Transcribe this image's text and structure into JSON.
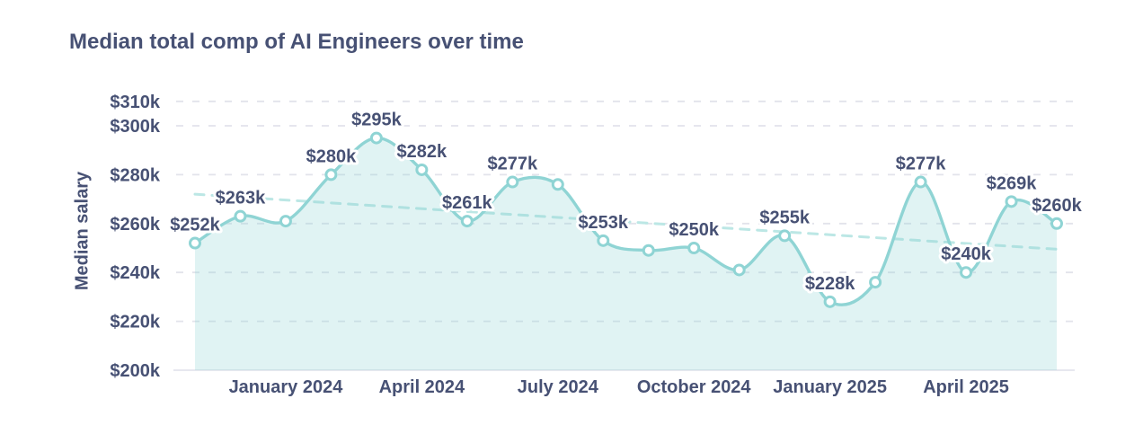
{
  "chart_data": {
    "type": "area",
    "title": "Median total comp of AI Engineers over time",
    "ylabel": "Median salary",
    "xlabel": "",
    "grid": true,
    "legend": false,
    "ylim": [
      200,
      310
    ],
    "y_axis": {
      "baseline_value": 200,
      "ticks": [
        {
          "value": 310,
          "label": "$310k"
        },
        {
          "value": 300,
          "label": "$300k"
        },
        {
          "value": 280,
          "label": "$280k"
        },
        {
          "value": 260,
          "label": "$260k"
        },
        {
          "value": 240,
          "label": "$240k"
        },
        {
          "value": 220,
          "label": "$220k"
        },
        {
          "value": 200,
          "label": "$200k"
        }
      ]
    },
    "x_ticks": [
      {
        "index": 2,
        "label": "January 2024"
      },
      {
        "index": 5,
        "label": "April 2024"
      },
      {
        "index": 8,
        "label": "July 2024"
      },
      {
        "index": 11,
        "label": "October 2024"
      },
      {
        "index": 14,
        "label": "January 2025"
      },
      {
        "index": 17,
        "label": "April 2025"
      }
    ],
    "points": [
      {
        "value": 252,
        "label": "$252k"
      },
      {
        "value": 263,
        "label": "$263k"
      },
      {
        "value": 261,
        "label": null
      },
      {
        "value": 280,
        "label": "$280k"
      },
      {
        "value": 295,
        "label": "$295k"
      },
      {
        "value": 282,
        "label": "$282k"
      },
      {
        "value": 261,
        "label": "$261k"
      },
      {
        "value": 277,
        "label": "$277k"
      },
      {
        "value": 276,
        "label": null
      },
      {
        "value": 253,
        "label": "$253k"
      },
      {
        "value": 249,
        "label": null
      },
      {
        "value": 250,
        "label": "$250k"
      },
      {
        "value": 241,
        "label": null
      },
      {
        "value": 255,
        "label": "$255k"
      },
      {
        "value": 228,
        "label": "$228k"
      },
      {
        "value": 236,
        "label": null
      },
      {
        "value": 277,
        "label": "$277k"
      },
      {
        "value": 240,
        "label": "$240k"
      },
      {
        "value": 269,
        "label": "$269k"
      },
      {
        "value": 260,
        "label": "$260k"
      }
    ],
    "trend": {
      "start_value": 272,
      "end_value": 249.5,
      "style": "dashed"
    },
    "colors": {
      "line": "#8fd4d4",
      "marker_fill": "#ffffff",
      "area": "rgba(143,212,212,0.28)",
      "trend": "#bce7e5",
      "grid": "#e2e3eb",
      "axis": "#e7e8ef",
      "text": "#475174"
    }
  }
}
